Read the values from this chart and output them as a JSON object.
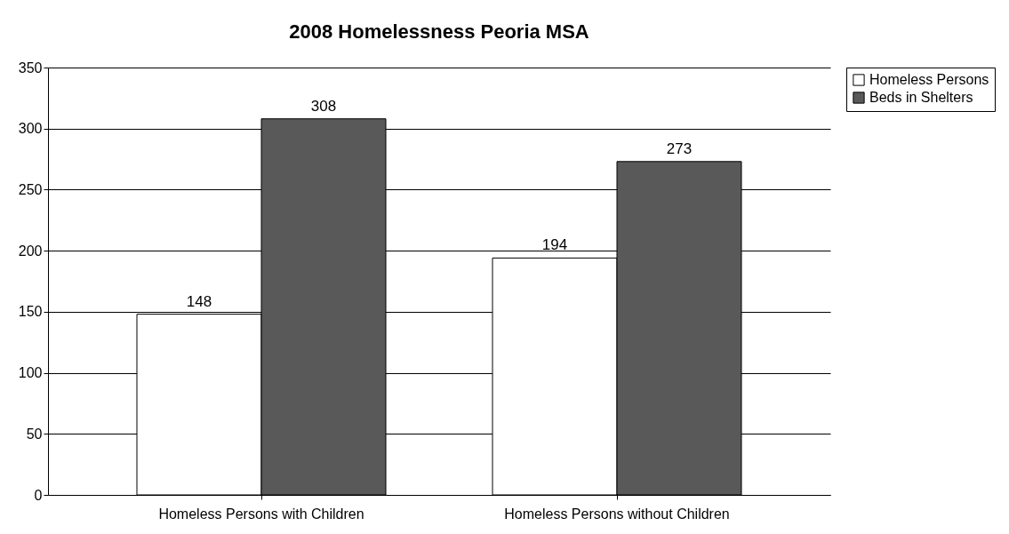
{
  "chart_data": {
    "type": "bar",
    "title": "2008 Homelessness Peoria MSA",
    "categories": [
      "Homeless Persons with Children",
      "Homeless Persons without Children"
    ],
    "series": [
      {
        "name": "Homeless Persons",
        "color": "#ffffff",
        "values": [
          148,
          194
        ]
      },
      {
        "name": "Beds in Shelters",
        "color": "#595959",
        "values": [
          308,
          273
        ]
      }
    ],
    "ylim": [
      0,
      350
    ],
    "yticks": [
      0,
      50,
      100,
      150,
      200,
      250,
      300,
      350
    ],
    "grid": "y",
    "legend": "right",
    "data_labels": true
  }
}
